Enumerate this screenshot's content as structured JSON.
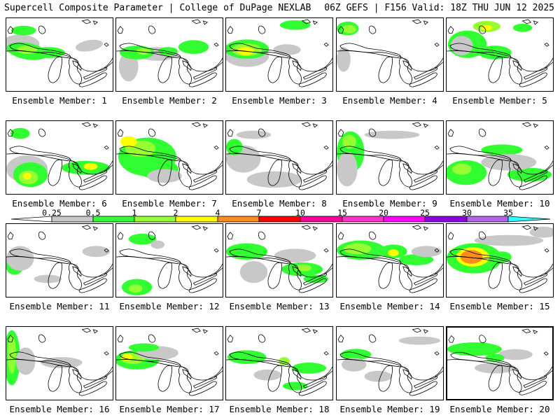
{
  "header": {
    "left": "Supercell Composite Parameter | College of DuPage NEXLAB",
    "right": "06Z GEFS | F156 Valid: 18Z THU JUN 12 2025"
  },
  "colors": {
    "c0": "#c8c8c8",
    "c1": "#32ff32",
    "c2": "#96ff32",
    "c3": "#ffff00",
    "c4": "#ff8c1e",
    "c5": "#ff0000",
    "c6": "#ff0096",
    "c7": "#ff32c8",
    "c8": "#ff00ff",
    "c9": "#8c00e6",
    "c10": "#b464e6",
    "c11": "#32ffff"
  },
  "legend": {
    "ticks": [
      "0.25",
      "0.5",
      "1",
      "2",
      "4",
      "7",
      "10",
      "15",
      "20",
      "25",
      "30",
      "35"
    ]
  },
  "panels": [
    {
      "label": "Ensemble Member: 1"
    },
    {
      "label": "Ensemble Member: 2"
    },
    {
      "label": "Ensemble Member: 3"
    },
    {
      "label": "Ensemble Member: 4"
    },
    {
      "label": "Ensemble Member: 5"
    },
    {
      "label": "Ensemble Member: 6"
    },
    {
      "label": "Ensemble Member: 7"
    },
    {
      "label": "Ensemble Member: 8"
    },
    {
      "label": "Ensemble Member: 9"
    },
    {
      "label": "Ensemble Member: 10"
    },
    {
      "label": "Ensemble Member: 11"
    },
    {
      "label": "Ensemble Member: 12"
    },
    {
      "label": "Ensemble Member: 13"
    },
    {
      "label": "Ensemble Member: 14"
    },
    {
      "label": "Ensemble Member: 15"
    },
    {
      "label": "Ensemble Member: 16"
    },
    {
      "label": "Ensemble Member: 17"
    },
    {
      "label": "Ensemble Member: 18"
    },
    {
      "label": "Ensemble Member: 19"
    },
    {
      "label": "Ensemble Member: 20"
    }
  ]
}
